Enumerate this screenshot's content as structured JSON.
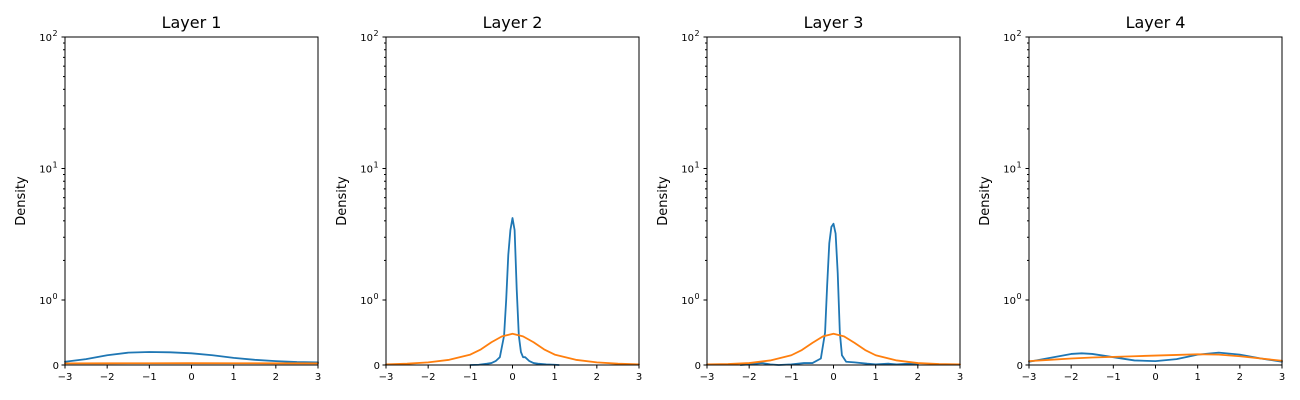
{
  "chart_data": [
    {
      "type": "line",
      "title": "Layer 1",
      "xlabel": "",
      "ylabel": "Density",
      "xlim": [
        -3,
        3
      ],
      "ylim": [
        0,
        100
      ],
      "yscale": "symlog",
      "grid": false,
      "xticks": [
        "−3",
        "−2",
        "−1",
        "0",
        "1",
        "2",
        "3"
      ],
      "yticks": [
        "0",
        "10",
        "10",
        "10"
      ],
      "ytick_exponents": [
        "",
        "0",
        "1",
        "2"
      ],
      "series": [
        {
          "color": "#1f77b4",
          "x": [
            -3,
            -2.5,
            -2,
            -1.5,
            -1,
            -0.5,
            0,
            0.5,
            1,
            1.5,
            2,
            2.5,
            3
          ],
          "y": [
            0.05,
            0.09,
            0.15,
            0.19,
            0.2,
            0.195,
            0.18,
            0.15,
            0.11,
            0.08,
            0.06,
            0.045,
            0.04
          ]
        },
        {
          "color": "#ff7f0e",
          "x": [
            -3,
            -2,
            -1,
            0,
            1,
            2,
            3
          ],
          "y": [
            0.025,
            0.026,
            0.027,
            0.028,
            0.027,
            0.026,
            0.025
          ]
        }
      ]
    },
    {
      "type": "line",
      "title": "Layer 2",
      "xlabel": "",
      "ylabel": "Density",
      "xlim": [
        -3,
        3
      ],
      "ylim": [
        0,
        100
      ],
      "yscale": "symlog",
      "grid": false,
      "xticks": [
        "−3",
        "−2",
        "−1",
        "0",
        "1",
        "2",
        "3"
      ],
      "yticks": [
        "0",
        "10",
        "10",
        "10"
      ],
      "ytick_exponents": [
        "",
        "0",
        "1",
        "2"
      ],
      "series": [
        {
          "color": "#1f77b4",
          "x": [
            -1.0,
            -0.8,
            -0.6,
            -0.5,
            -0.4,
            -0.3,
            -0.2,
            -0.15,
            -0.1,
            -0.05,
            0.0,
            0.05,
            0.1,
            0.15,
            0.2,
            0.25,
            0.3,
            0.4,
            0.5,
            0.6,
            0.8,
            1.0,
            1.1
          ],
          "y": [
            0.0,
            0.004,
            0.02,
            0.03,
            0.06,
            0.12,
            0.45,
            1.0,
            2.2,
            3.4,
            4.2,
            3.4,
            1.2,
            0.45,
            0.2,
            0.12,
            0.12,
            0.06,
            0.03,
            0.02,
            0.01,
            0.004,
            0.0
          ]
        },
        {
          "color": "#ff7f0e",
          "x": [
            -3,
            -2.5,
            -2,
            -1.5,
            -1,
            -0.75,
            -0.5,
            -0.25,
            0,
            0.25,
            0.5,
            0.75,
            1,
            1.5,
            2,
            2.5,
            3
          ],
          "y": [
            0.01,
            0.02,
            0.04,
            0.08,
            0.16,
            0.24,
            0.35,
            0.44,
            0.48,
            0.44,
            0.35,
            0.24,
            0.16,
            0.08,
            0.04,
            0.02,
            0.01
          ]
        }
      ]
    },
    {
      "type": "line",
      "title": "Layer 3",
      "xlabel": "",
      "ylabel": "Density",
      "xlim": [
        -3,
        3
      ],
      "ylim": [
        0,
        100
      ],
      "yscale": "symlog",
      "grid": false,
      "xticks": [
        "−3",
        "−2",
        "−1",
        "0",
        "1",
        "2",
        "3"
      ],
      "yticks": [
        "0",
        "10",
        "10",
        "10"
      ],
      "ytick_exponents": [
        "",
        "0",
        "1",
        "2"
      ],
      "series": [
        {
          "color": "#1f77b4",
          "x": [
            -2.2,
            -2.0,
            -1.7,
            -1.5,
            -1.3,
            -1.0,
            -0.7,
            -0.5,
            -0.3,
            -0.2,
            -0.15,
            -0.1,
            -0.05,
            0.0,
            0.05,
            0.1,
            0.15,
            0.2,
            0.3,
            0.5,
            0.8,
            1.0,
            1.3,
            1.5,
            1.8,
            2.0
          ],
          "y": [
            0.0,
            0.01,
            0.03,
            0.01,
            0.0,
            0.01,
            0.03,
            0.03,
            0.1,
            0.5,
            1.3,
            2.7,
            3.6,
            3.8,
            3.2,
            1.6,
            0.5,
            0.15,
            0.05,
            0.04,
            0.02,
            0.01,
            0.02,
            0.01,
            0.02,
            0.01
          ]
        },
        {
          "color": "#ff7f0e",
          "x": [
            -3,
            -2.5,
            -2,
            -1.5,
            -1,
            -0.75,
            -0.5,
            -0.25,
            0,
            0.25,
            0.5,
            0.75,
            1,
            1.5,
            2,
            2.5,
            3
          ],
          "y": [
            0.01,
            0.015,
            0.03,
            0.07,
            0.15,
            0.23,
            0.34,
            0.44,
            0.48,
            0.44,
            0.34,
            0.23,
            0.15,
            0.07,
            0.03,
            0.015,
            0.01
          ]
        }
      ]
    },
    {
      "type": "line",
      "title": "Layer 4",
      "xlabel": "",
      "ylabel": "Density",
      "xlim": [
        -3,
        3
      ],
      "ylim": [
        0,
        100
      ],
      "yscale": "symlog",
      "grid": false,
      "xticks": [
        "−3",
        "−2",
        "−1",
        "0",
        "1",
        "2",
        "3"
      ],
      "yticks": [
        "0",
        "10",
        "10",
        "10"
      ],
      "ytick_exponents": [
        "",
        "0",
        "1",
        "2"
      ],
      "series": [
        {
          "color": "#1f77b4",
          "x": [
            -3,
            -2.5,
            -2,
            -1.75,
            -1.5,
            -1,
            -0.5,
            0,
            0.5,
            1,
            1.5,
            2,
            2.5,
            3
          ],
          "y": [
            0.05,
            0.11,
            0.17,
            0.18,
            0.17,
            0.12,
            0.07,
            0.06,
            0.09,
            0.16,
            0.19,
            0.16,
            0.1,
            0.05
          ]
        },
        {
          "color": "#ff7f0e",
          "x": [
            -3,
            -2.5,
            -2,
            -1.5,
            -1,
            -0.5,
            0,
            0.5,
            1,
            1.5,
            2,
            2.5,
            3
          ],
          "y": [
            0.06,
            0.08,
            0.1,
            0.115,
            0.125,
            0.135,
            0.145,
            0.155,
            0.165,
            0.16,
            0.135,
            0.1,
            0.065
          ]
        }
      ]
    }
  ]
}
